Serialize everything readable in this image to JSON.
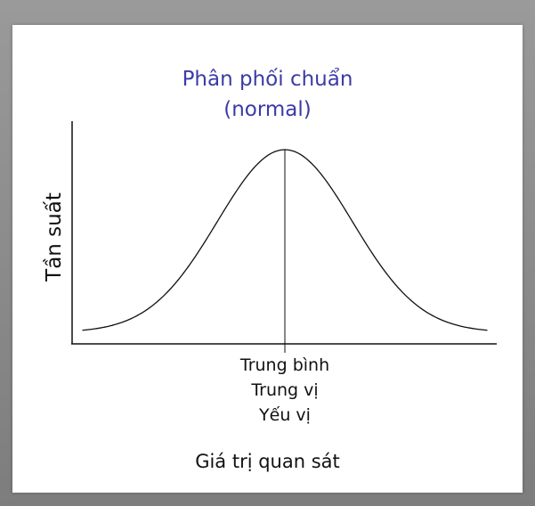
{
  "title": {
    "line1": "Phân phối chuẩn",
    "line2": "(normal)"
  },
  "y_axis_label": "Tần suất",
  "center_labels": [
    "Trung bình",
    "Trung vị",
    "Yếu vị"
  ],
  "x_axis_label": "Giá trị quan sát",
  "colors": {
    "title": "#3b3ba6",
    "ink": "#111111",
    "card": "#ffffff",
    "frame": "#8a8a8a"
  },
  "curve": {
    "shape": "normal-bell",
    "std_devs_shown": 3
  }
}
